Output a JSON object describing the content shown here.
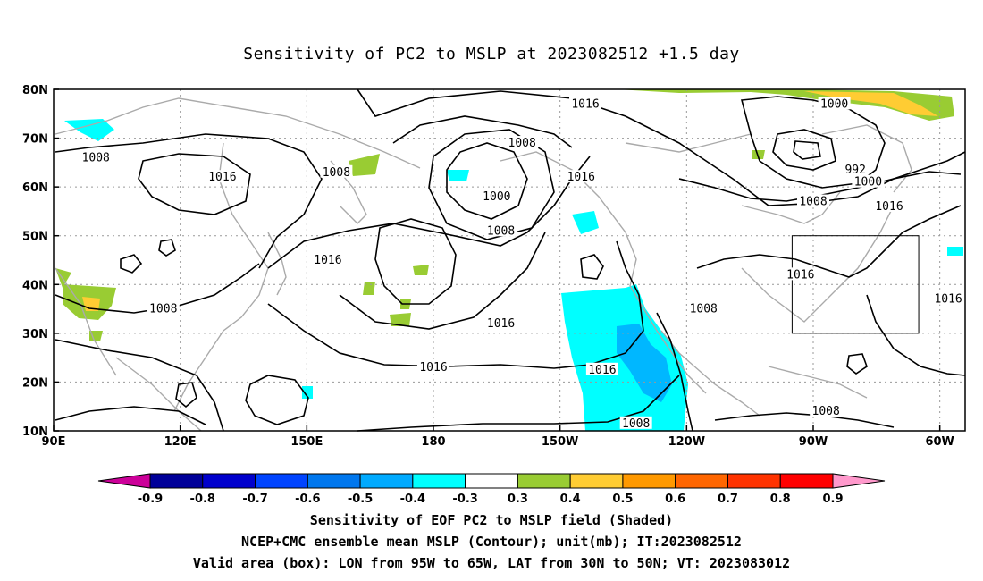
{
  "title": "Sensitivity of PC2 to MSLP at 2023082512 +1.5 day",
  "map": {
    "lon_range": [
      90,
      306
    ],
    "lat_range": [
      10,
      80
    ],
    "lon_ticks": [
      {
        "value": 90,
        "label": "90E"
      },
      {
        "value": 120,
        "label": "120E"
      },
      {
        "value": 150,
        "label": "150E"
      },
      {
        "value": 180,
        "label": "180"
      },
      {
        "value": 210,
        "label": "150W"
      },
      {
        "value": 240,
        "label": "120W"
      },
      {
        "value": 270,
        "label": "90W"
      },
      {
        "value": 300,
        "label": "60W"
      }
    ],
    "lat_ticks": [
      {
        "value": 10,
        "label": "10N"
      },
      {
        "value": 20,
        "label": "20N"
      },
      {
        "value": 30,
        "label": "30N"
      },
      {
        "value": 40,
        "label": "40N"
      },
      {
        "value": 50,
        "label": "50N"
      },
      {
        "value": 60,
        "label": "60N"
      },
      {
        "value": 70,
        "label": "70N"
      },
      {
        "value": 80,
        "label": "80N"
      }
    ],
    "gridlines": "dotted",
    "valid_box": {
      "lon": [
        265,
        295
      ],
      "lat": [
        30,
        50
      ]
    },
    "contour_labels": [
      {
        "text": "1016",
        "lon": 216,
        "lat": 77
      },
      {
        "text": "1000",
        "lon": 275,
        "lat": 77
      },
      {
        "text": "1008",
        "lon": 201,
        "lat": 69
      },
      {
        "text": "1008",
        "lon": 100,
        "lat": 66
      },
      {
        "text": "1016",
        "lon": 130,
        "lat": 62
      },
      {
        "text": "1008",
        "lon": 157,
        "lat": 63
      },
      {
        "text": "1016",
        "lon": 215,
        "lat": 62
      },
      {
        "text": "992",
        "lon": 280,
        "lat": 63.5
      },
      {
        "text": "1000",
        "lon": 283,
        "lat": 61
      },
      {
        "text": "1000",
        "lon": 195,
        "lat": 58
      },
      {
        "text": "1008",
        "lon": 270,
        "lat": 57
      },
      {
        "text": "1016",
        "lon": 288,
        "lat": 56
      },
      {
        "text": "1008",
        "lon": 196,
        "lat": 51
      },
      {
        "text": "1016",
        "lon": 155,
        "lat": 45
      },
      {
        "text": "1016",
        "lon": 267,
        "lat": 42
      },
      {
        "text": "1016",
        "lon": 302,
        "lat": 37
      },
      {
        "text": "1008",
        "lon": 116,
        "lat": 35
      },
      {
        "text": "1008",
        "lon": 244,
        "lat": 35
      },
      {
        "text": "1016",
        "lon": 196,
        "lat": 32
      },
      {
        "text": "1016",
        "lon": 180,
        "lat": 23
      },
      {
        "text": "1016",
        "lon": 220,
        "lat": 22.5
      },
      {
        "text": "1008",
        "lon": 228,
        "lat": 11.5
      },
      {
        "text": "1008",
        "lon": 273,
        "lat": 14
      }
    ]
  },
  "colorbar": {
    "labels": [
      "-0.9",
      "-0.8",
      "-0.7",
      "-0.6",
      "-0.5",
      "-0.4",
      "-0.3",
      "0.3",
      "0.4",
      "0.5",
      "0.6",
      "0.7",
      "0.8",
      "0.9"
    ],
    "colors": [
      "#cc0099",
      "#000099",
      "#0000cc",
      "#0044ff",
      "#0077ee",
      "#00aaff",
      "#00ffff",
      "#ffffff",
      "#99cc33",
      "#ffcc33",
      "#ff9900",
      "#ff6600",
      "#ff3300",
      "#ff0000",
      "#ff99cc"
    ]
  },
  "captions": [
    "Sensitivity of EOF PC2 to MSLP field (Shaded)",
    "NCEP+CMC ensemble mean MSLP (Contour); unit(mb); IT:2023082512",
    "Valid area (box): LON from 95W to 65W, LAT from 30N to 50N; VT: 2023083012"
  ]
}
